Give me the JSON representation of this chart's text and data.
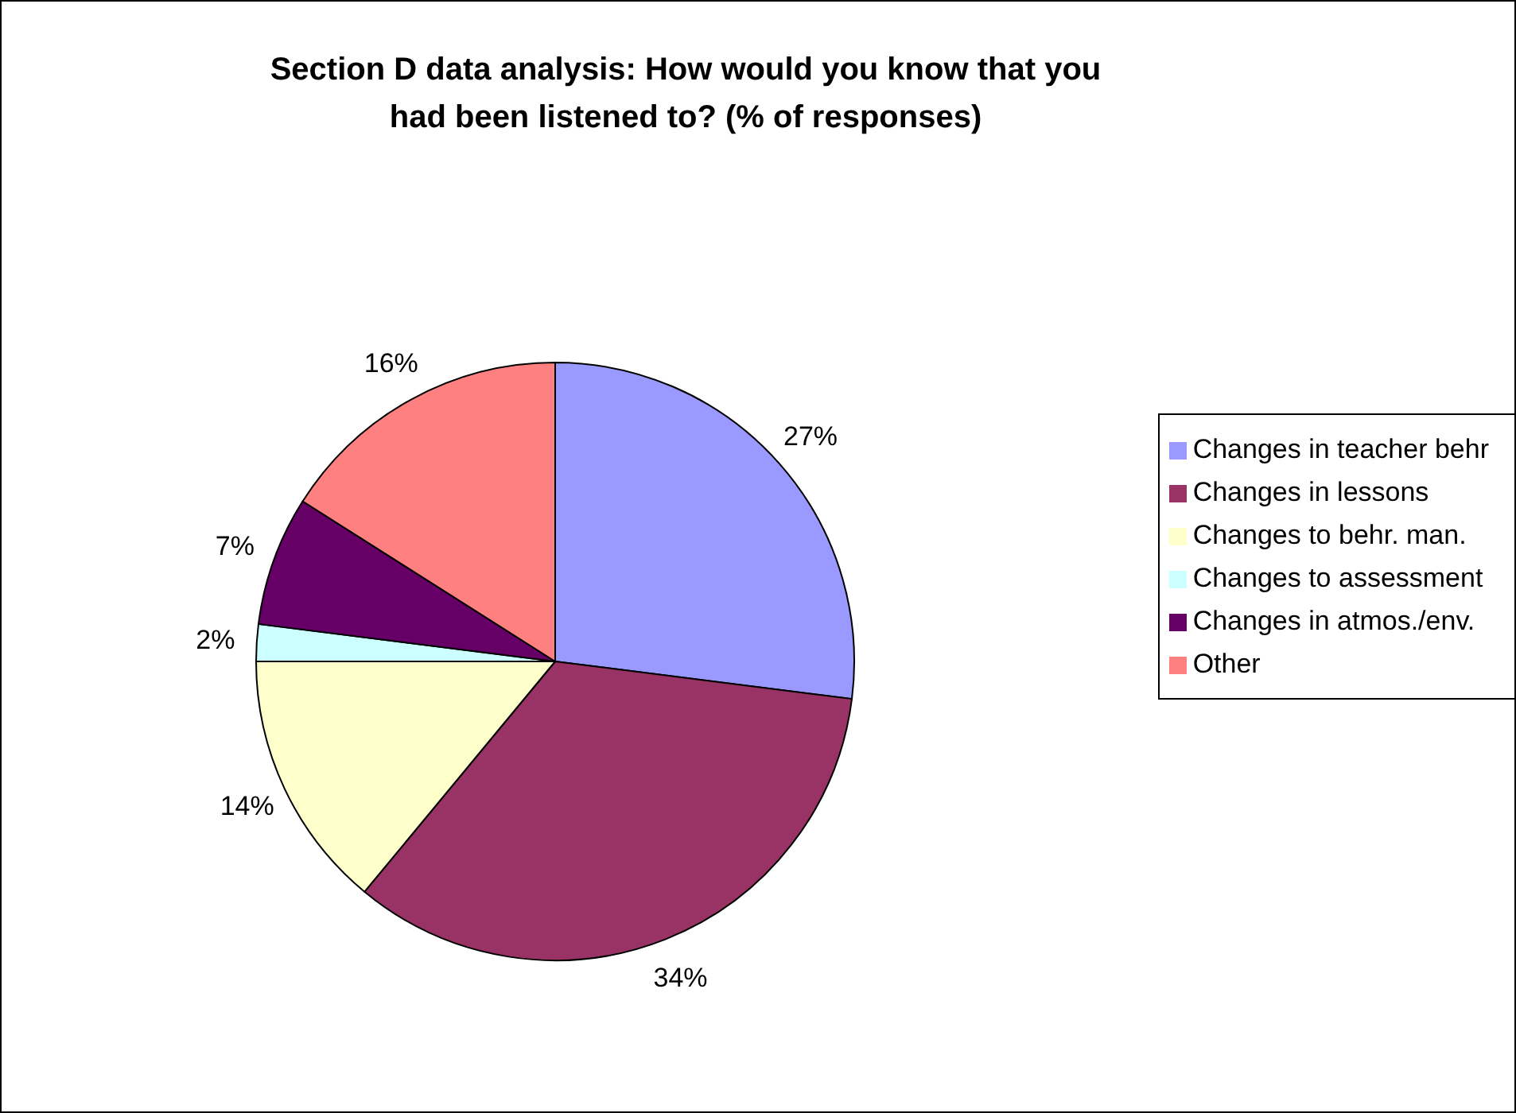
{
  "chart_data": {
    "type": "pie",
    "title": "Section D data analysis: How would you know that you had been listened to? (% of responses)",
    "categories": [
      "Changes in teacher behr",
      "Changes in lessons",
      "Changes to behr. man.",
      "Changes to assessment",
      "Changes in atmos./env.",
      "Other"
    ],
    "values": [
      27,
      34,
      14,
      2,
      7,
      16
    ],
    "colors": [
      "#9999ff",
      "#993366",
      "#ffffcc",
      "#ccffff",
      "#660066",
      "#ff8080"
    ],
    "value_labels": [
      "27%",
      "34%",
      "14%",
      "2%",
      "7%",
      "16%"
    ],
    "legend": "right"
  }
}
